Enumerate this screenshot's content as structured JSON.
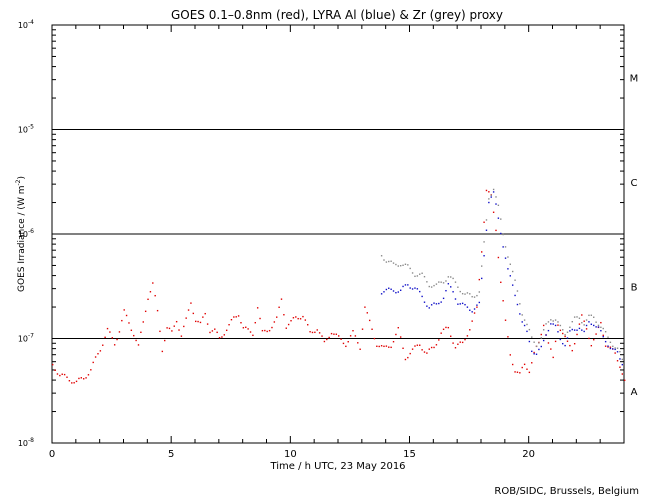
{
  "chart_data": {
    "type": "scatter",
    "title": "GOES 0.1–0.8nm (red), LYRA Al (blue) & Zr (grey) proxy",
    "xlabel": "Time / h UTC, 23 May 2016",
    "ylabel_main": "GOES Irradiance / (W m",
    "ylabel_exp": "-2",
    "ylabel_end": ")",
    "credit": "ROB/SIDC, Brussels, Belgium",
    "xlim": [
      0,
      24
    ],
    "ylim_log10": [
      -8,
      -4
    ],
    "x_ticks": [
      {
        "value": 0,
        "label": "0"
      },
      {
        "value": 5,
        "label": "5"
      },
      {
        "value": 10,
        "label": "10"
      },
      {
        "value": 15,
        "label": "15"
      },
      {
        "value": 20,
        "label": "20"
      }
    ],
    "y_ticks": [
      {
        "exp": -8,
        "base": "10",
        "sup": "-8"
      },
      {
        "exp": -7,
        "base": "10",
        "sup": "-7"
      },
      {
        "exp": -6,
        "base": "10",
        "sup": "-6"
      },
      {
        "exp": -5,
        "base": "10",
        "sup": "-5"
      },
      {
        "exp": -4,
        "base": "10",
        "sup": "-4"
      }
    ],
    "flare_levels": [
      {
        "exp": -7,
        "class": "A"
      },
      {
        "exp": -6,
        "class": "B"
      },
      {
        "exp": -5,
        "class": "C"
      }
    ],
    "flare_class_labels": [
      {
        "label": "A",
        "exp": -7.5
      },
      {
        "label": "B",
        "exp": -6.5
      },
      {
        "label": "C",
        "exp": -5.5
      },
      {
        "label": "M",
        "exp": -4.5
      }
    ],
    "series": [
      {
        "name": "GOES 0.1-0.8nm",
        "color": "#e00000",
        "x": [
          0.0,
          0.3,
          0.6,
          1.0,
          1.3,
          1.6,
          1.8,
          2.0,
          2.3,
          2.6,
          2.8,
          3.0,
          3.2,
          3.4,
          3.6,
          3.8,
          4.0,
          4.2,
          4.4,
          4.6,
          4.8,
          5.0,
          5.2,
          5.4,
          5.6,
          5.8,
          6.0,
          6.2,
          6.4,
          6.6,
          6.8,
          7.0,
          7.2,
          7.4,
          7.6,
          7.8,
          8.0,
          8.2,
          8.4,
          8.6,
          8.8,
          9.0,
          9.2,
          9.4,
          9.6,
          9.8,
          10.0,
          10.2,
          10.5,
          10.8,
          11.1,
          11.4,
          11.7,
          12.0,
          12.3,
          12.6,
          12.9,
          13.1,
          13.3,
          13.6,
          13.9,
          14.2,
          14.5,
          14.8,
          15.1,
          15.4,
          15.7,
          16.0,
          16.3,
          16.6,
          16.9,
          17.2,
          17.5,
          17.8,
          18.0,
          18.2,
          18.4,
          18.6,
          18.8,
          19.0,
          19.2,
          19.4,
          19.6,
          19.8,
          20.0,
          20.2,
          20.4,
          20.6,
          20.8,
          21.0,
          21.2,
          21.4,
          21.6,
          21.8,
          22.0,
          22.2,
          22.4,
          22.6,
          22.8,
          23.0,
          23.2,
          23.4,
          23.6,
          23.8,
          24.0
        ],
        "log10_values": [
          -7.25,
          -7.35,
          -7.38,
          -7.42,
          -7.38,
          -7.3,
          -7.2,
          -7.1,
          -6.92,
          -7.05,
          -6.92,
          -6.75,
          -6.85,
          -6.95,
          -7.08,
          -6.85,
          -6.6,
          -6.48,
          -6.75,
          -7.1,
          -6.9,
          -6.95,
          -6.82,
          -6.97,
          -6.83,
          -6.65,
          -6.82,
          -6.87,
          -6.76,
          -6.92,
          -6.93,
          -7.0,
          -6.94,
          -6.88,
          -6.81,
          -6.76,
          -6.9,
          -6.93,
          -6.95,
          -6.7,
          -6.95,
          -6.92,
          -6.88,
          -6.82,
          -6.62,
          -6.88,
          -6.85,
          -6.8,
          -6.78,
          -6.95,
          -6.9,
          -7.05,
          -6.93,
          -7.0,
          -7.05,
          -6.95,
          -7.08,
          -6.7,
          -6.85,
          -7.05,
          -7.1,
          -7.06,
          -6.92,
          -7.18,
          -7.12,
          -7.05,
          -7.15,
          -7.08,
          -6.95,
          -6.9,
          -7.08,
          -7.05,
          -6.9,
          -6.72,
          -6.15,
          -5.58,
          -5.65,
          -5.95,
          -6.45,
          -6.85,
          -7.15,
          -7.3,
          -7.35,
          -7.25,
          -7.3,
          -7.15,
          -7.05,
          -6.85,
          -7.05,
          -7.2,
          -6.85,
          -6.95,
          -7.05,
          -7.1,
          -6.95,
          -6.8,
          -6.9,
          -7.05,
          -6.98,
          -6.85,
          -7.05,
          -7.1,
          -7.15,
          -7.25,
          -7.4
        ]
      },
      {
        "name": "LYRA Al proxy",
        "color": "#1010c8",
        "x": [
          13.8,
          14.0,
          14.3,
          14.6,
          14.9,
          15.2,
          15.5,
          15.8,
          16.1,
          16.4,
          16.6,
          16.8,
          17.0,
          17.3,
          17.6,
          17.9,
          18.1,
          18.3,
          18.5,
          18.7,
          18.9,
          19.1,
          19.3,
          19.5,
          19.7,
          19.9,
          20.1,
          20.3,
          20.5,
          20.7,
          20.9,
          21.1,
          21.3,
          21.5,
          21.7,
          21.9,
          22.1,
          22.3,
          22.5,
          22.7,
          22.9,
          23.1,
          23.3,
          23.5,
          23.7,
          23.9
        ],
        "log10_values": [
          -6.55,
          -6.55,
          -6.53,
          -6.55,
          -6.48,
          -6.52,
          -6.6,
          -6.7,
          -6.68,
          -6.6,
          -6.5,
          -6.55,
          -6.65,
          -6.7,
          -6.72,
          -6.68,
          -6.2,
          -5.68,
          -5.62,
          -5.85,
          -6.1,
          -6.35,
          -6.5,
          -6.65,
          -6.85,
          -6.95,
          -7.1,
          -7.15,
          -7.1,
          -6.95,
          -6.85,
          -6.9,
          -7.0,
          -7.05,
          -6.95,
          -6.92,
          -6.88,
          -6.95,
          -6.85,
          -6.85,
          -6.9,
          -7.0,
          -7.05,
          -7.1,
          -7.15,
          -7.25
        ]
      },
      {
        "name": "LYRA Zr proxy",
        "color": "#8a8a8a",
        "x": [
          13.8,
          14.0,
          14.3,
          14.6,
          14.9,
          15.2,
          15.5,
          15.8,
          16.1,
          16.4,
          16.6,
          16.8,
          17.0,
          17.3,
          17.6,
          17.9,
          18.1,
          18.3,
          18.5,
          18.7,
          18.9,
          19.1,
          19.3,
          19.5,
          19.7,
          19.9,
          20.1,
          20.3,
          20.5,
          20.7,
          20.9,
          21.1,
          21.3,
          21.5,
          21.7,
          21.9,
          22.1,
          22.3,
          22.5,
          22.7,
          22.9,
          23.1,
          23.3,
          23.5,
          23.7,
          23.9
        ],
        "log10_values": [
          -6.2,
          -6.25,
          -6.3,
          -6.28,
          -6.32,
          -6.38,
          -6.4,
          -6.48,
          -6.5,
          -6.45,
          -6.4,
          -6.45,
          -6.5,
          -6.58,
          -6.6,
          -6.55,
          -6.1,
          -5.65,
          -5.56,
          -5.75,
          -6.0,
          -6.2,
          -6.38,
          -6.55,
          -6.75,
          -6.88,
          -7.0,
          -7.05,
          -7.0,
          -6.88,
          -6.8,
          -6.82,
          -6.9,
          -6.95,
          -6.88,
          -6.82,
          -6.8,
          -6.85,
          -6.8,
          -6.8,
          -6.85,
          -6.92,
          -7.0,
          -7.05,
          -7.1,
          -7.2
        ]
      }
    ]
  }
}
